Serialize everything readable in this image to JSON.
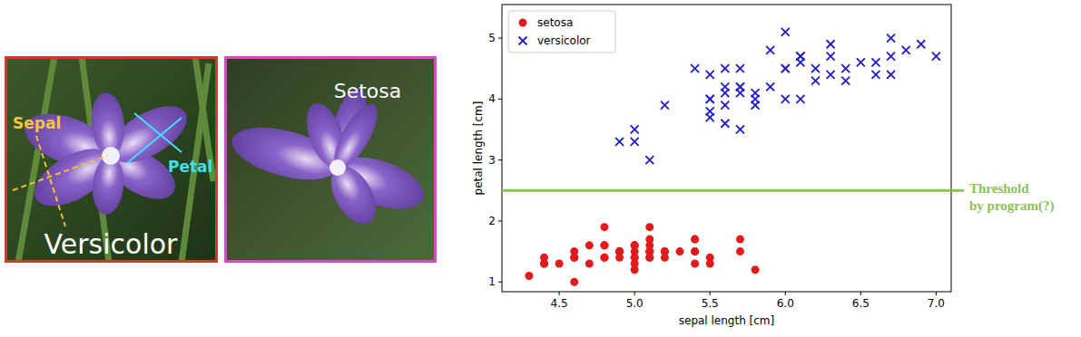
{
  "photos": [
    {
      "label": "Versicolor",
      "parts": [
        "Sepal",
        "Petal"
      ]
    },
    {
      "label": "Setosa"
    }
  ],
  "chart_data": {
    "type": "scatter",
    "x_label": "sepal length [cm]",
    "y_label": "petal length [cm]",
    "xlim": [
      4.12,
      7.1
    ],
    "ylim": [
      0.84,
      5.55
    ],
    "xticks": [
      4.5,
      {
        "value": 5,
        "label": "5.0"
      },
      5.5,
      {
        "value": 6,
        "label": "6.0"
      },
      6.5,
      {
        "value": 7,
        "label": "7.0"
      }
    ],
    "yticks": [
      1,
      2,
      3,
      4,
      5
    ],
    "grid": false,
    "legend": "upper-left",
    "series": [
      {
        "name": "setosa",
        "color": "#e31a1c",
        "marker": "circle",
        "x": [
          5.1,
          4.9,
          4.7,
          4.6,
          5.0,
          5.4,
          4.6,
          5.0,
          4.4,
          4.9,
          5.4,
          4.8,
          4.8,
          4.3,
          5.8,
          5.7,
          5.4,
          5.1,
          5.7,
          5.1,
          5.4,
          5.1,
          4.6,
          5.1,
          4.8,
          5.0,
          5.0,
          5.2,
          5.2,
          4.7,
          4.8,
          5.4,
          5.2,
          5.5,
          4.9,
          5.0,
          5.5,
          4.9,
          4.4,
          5.1,
          5.0,
          4.5,
          4.4,
          5.0,
          5.1,
          4.8,
          5.1,
          4.6,
          5.3,
          5.0
        ],
        "values": [
          1.4,
          1.4,
          1.3,
          1.5,
          1.4,
          1.7,
          1.4,
          1.5,
          1.4,
          1.5,
          1.5,
          1.6,
          1.4,
          1.1,
          1.2,
          1.5,
          1.3,
          1.4,
          1.7,
          1.5,
          1.7,
          1.5,
          1.0,
          1.7,
          1.9,
          1.6,
          1.6,
          1.5,
          1.4,
          1.6,
          1.6,
          1.5,
          1.5,
          1.4,
          1.5,
          1.2,
          1.3,
          1.5,
          1.3,
          1.5,
          1.3,
          1.3,
          1.3,
          1.6,
          1.9,
          1.4,
          1.6,
          1.4,
          1.5,
          1.4
        ]
      },
      {
        "name": "versicolor",
        "color": "#1c1cc8",
        "marker": "x",
        "x": [
          7.0,
          6.4,
          6.9,
          5.5,
          6.5,
          5.7,
          6.3,
          4.9,
          6.6,
          5.2,
          5.0,
          5.9,
          6.0,
          6.1,
          5.6,
          6.7,
          5.6,
          5.8,
          6.2,
          5.6,
          5.9,
          6.1,
          6.3,
          6.1,
          6.4,
          6.6,
          6.8,
          6.7,
          6.0,
          5.7,
          5.5,
          5.5,
          5.8,
          6.0,
          5.4,
          6.0,
          6.7,
          6.3,
          5.6,
          5.5,
          5.5,
          6.1,
          5.8,
          5.0,
          5.6,
          5.7,
          5.7,
          6.2,
          5.1,
          5.7
        ],
        "values": [
          4.7,
          4.5,
          4.9,
          4.0,
          4.6,
          4.5,
          4.7,
          3.3,
          4.6,
          3.9,
          3.5,
          4.2,
          4.0,
          4.7,
          3.6,
          4.4,
          4.5,
          4.1,
          4.5,
          3.9,
          4.8,
          4.0,
          4.9,
          4.7,
          4.3,
          4.4,
          4.8,
          5.0,
          4.5,
          3.5,
          3.8,
          3.7,
          3.9,
          5.1,
          4.5,
          4.5,
          4.7,
          4.4,
          4.1,
          4.0,
          4.4,
          4.6,
          4.0,
          3.3,
          4.2,
          4.2,
          4.2,
          4.3,
          3.0,
          4.1
        ]
      }
    ],
    "annotations": [
      {
        "y": 2.5,
        "text": [
          "Threshold",
          "by program(?)"
        ],
        "color": "#8cc152"
      }
    ]
  }
}
